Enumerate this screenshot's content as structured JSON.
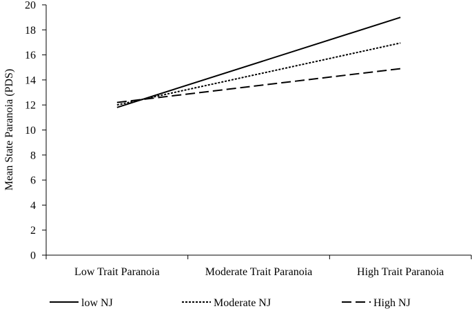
{
  "chart_data": {
    "type": "line",
    "title": "",
    "xlabel": "",
    "ylabel": "Mean State Paranoia (PDS)",
    "categories": [
      "Low Trait Paranoia",
      "Moderate Trait Paranoia",
      "High Trait Paranoia"
    ],
    "ylim": [
      0,
      20
    ],
    "yticks": [
      0,
      2,
      4,
      6,
      8,
      10,
      12,
      14,
      16,
      18,
      20
    ],
    "grid": false,
    "legend_position": "bottom",
    "series": [
      {
        "name": "low NJ",
        "x": [
          0,
          2
        ],
        "values": [
          11.8,
          19.0
        ],
        "dash": "solid"
      },
      {
        "name": "Moderate NJ",
        "x": [
          0,
          2
        ],
        "values": [
          12.0,
          16.95
        ],
        "dash": "dotted"
      },
      {
        "name": "High NJ",
        "x": [
          0,
          2
        ],
        "values": [
          12.2,
          14.9
        ],
        "dash": "dashed"
      }
    ]
  }
}
